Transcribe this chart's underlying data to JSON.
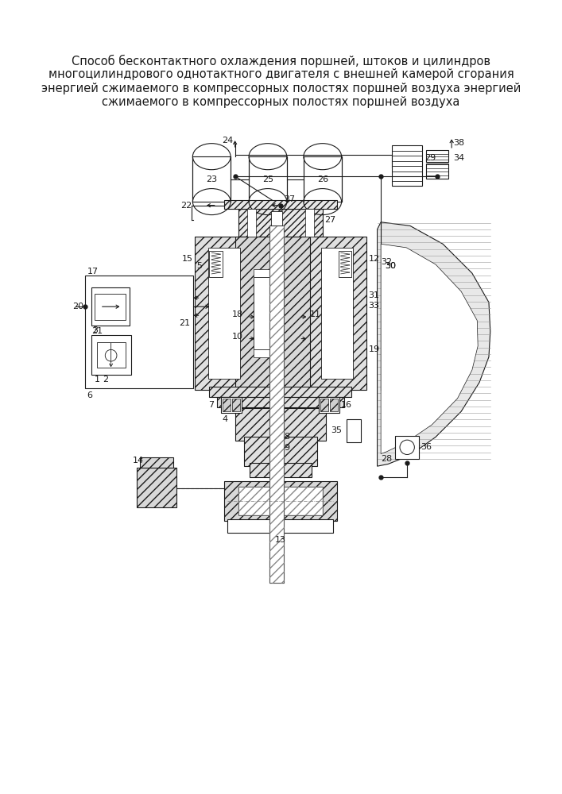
{
  "title_lines": [
    "Способ бесконтактного охлаждения поршней, штоков и цилиндров",
    "многоцилиндрового однотактного двигателя с внешней камерой сгорания",
    "энергией сжимаемого в компрессорных полостях поршней воздуха энергией",
    "сжимаемого в компрессорных полостях поршней воздуха"
  ],
  "bg_color": "#ffffff",
  "lc": "#1a1a1a",
  "lw": 0.8,
  "fs": 8.0,
  "title_fs": 10.5
}
